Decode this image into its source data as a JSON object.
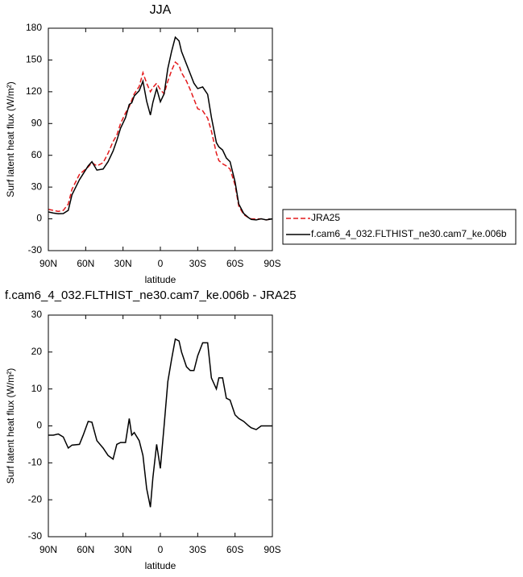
{
  "chart_data": [
    {
      "type": "line",
      "title": "JJA",
      "xlabel": "latitude",
      "ylabel": "Surf latent heat flux (W/m²)",
      "x": [
        90,
        86,
        82,
        78,
        74,
        71,
        65,
        62,
        58,
        55,
        51,
        46,
        42,
        38,
        35,
        32,
        28,
        25,
        23,
        21,
        17,
        14,
        11,
        8,
        6,
        3,
        0,
        -3,
        -6,
        -9,
        -12,
        -15,
        -17,
        -21,
        -24,
        -27,
        -30,
        -34,
        -38,
        -41,
        -45,
        -47,
        -50,
        -53,
        -56,
        -60,
        -63,
        -67,
        -71,
        -73,
        -77,
        -81,
        -85,
        -90
      ],
      "series": [
        {
          "name": "JRA25",
          "color": "#e41a1c",
          "linestyle": "dashed",
          "values": [
            9,
            8,
            7,
            8,
            14,
            28,
            42,
            45,
            49,
            53,
            50,
            53,
            62,
            73,
            79,
            90,
            100,
            106,
            112,
            118,
            125,
            138,
            128,
            120,
            124,
            128,
            122,
            118,
            130,
            140,
            148,
            145,
            138,
            130,
            122,
            113,
            104,
            102,
            95,
            83,
            62,
            55,
            52,
            50,
            47,
            32,
            12,
            4,
            1,
            0,
            0,
            0,
            -1,
            0
          ]
        },
        {
          "name": "f.cam6_4_032.FLTHIST_ne30.cam7_ke.006b",
          "color": "#000000",
          "linestyle": "solid",
          "values": [
            6.5,
            5.5,
            4.8,
            5,
            8,
            22.8,
            37,
            42.5,
            50,
            54,
            46,
            47,
            54,
            64,
            74,
            85.5,
            95.5,
            108,
            109.5,
            116,
            121,
            130,
            111,
            98,
            110,
            123,
            110.5,
            118,
            142,
            158,
            171.5,
            168,
            158,
            146,
            137,
            128,
            123,
            124.5,
            117.5,
            96,
            72,
            68,
            65,
            57.5,
            54,
            35,
            14,
            5,
            1,
            -0.5,
            -1,
            0,
            -1,
            0
          ]
        }
      ],
      "xlim": [
        90,
        -90
      ],
      "xticks": [
        {
          "value": 90,
          "label": "90N"
        },
        {
          "value": 60,
          "label": "60N"
        },
        {
          "value": 30,
          "label": "30N"
        },
        0,
        {
          "value": -30,
          "label": "30S"
        },
        {
          "value": -60,
          "label": "60S"
        },
        {
          "value": -90,
          "label": "90S"
        }
      ],
      "ylim": [
        -30,
        180
      ],
      "yticks": [
        -30,
        0,
        30,
        60,
        90,
        120,
        150,
        180
      ],
      "legend": "outside right"
    },
    {
      "type": "line",
      "title": "f.cam6_4_032.FLTHIST_ne30.cam7_ke.006b - JRA25",
      "xlabel": "latitude",
      "ylabel": "Surf latent heat flux (W/m²)",
      "x": [
        90,
        86,
        82,
        78,
        74,
        71,
        65,
        62,
        58,
        55,
        51,
        46,
        42,
        38,
        35,
        32,
        28,
        25,
        23,
        21,
        17,
        14,
        11,
        8,
        6,
        3,
        0,
        -3,
        -6,
        -9,
        -12,
        -15,
        -17,
        -21,
        -24,
        -27,
        -30,
        -34,
        -38,
        -41,
        -45,
        -47,
        -50,
        -53,
        -56,
        -60,
        -63,
        -67,
        -71,
        -73,
        -77,
        -81,
        -85,
        -90
      ],
      "series": [
        {
          "color": "#000000",
          "linestyle": "solid",
          "values": [
            -2.5,
            -2.5,
            -2.2,
            -3,
            -6,
            -5.2,
            -5,
            -2.5,
            1.2,
            1,
            -4,
            -6,
            -8,
            -9,
            -5,
            -4.5,
            -4.5,
            2,
            -2.5,
            -1.8,
            -4,
            -8,
            -17,
            -22,
            -14,
            -5,
            -11.5,
            0,
            12,
            18,
            23.5,
            23,
            20,
            16,
            15,
            15,
            19,
            22.5,
            22.5,
            13,
            10,
            13,
            13,
            7.5,
            7,
            3,
            2,
            1.2,
            0,
            -0.5,
            -1,
            0,
            0,
            0
          ]
        }
      ],
      "xlim": [
        90,
        -90
      ],
      "xticks": [
        {
          "value": 90,
          "label": "90N"
        },
        {
          "value": 60,
          "label": "60N"
        },
        {
          "value": 30,
          "label": "30N"
        },
        0,
        {
          "value": -30,
          "label": "30S"
        },
        {
          "value": -60,
          "label": "60S"
        },
        {
          "value": -90,
          "label": "90S"
        }
      ],
      "ylim": [
        -30,
        30
      ],
      "yticks": [
        -30,
        -20,
        -10,
        0,
        10,
        20,
        30
      ]
    }
  ]
}
